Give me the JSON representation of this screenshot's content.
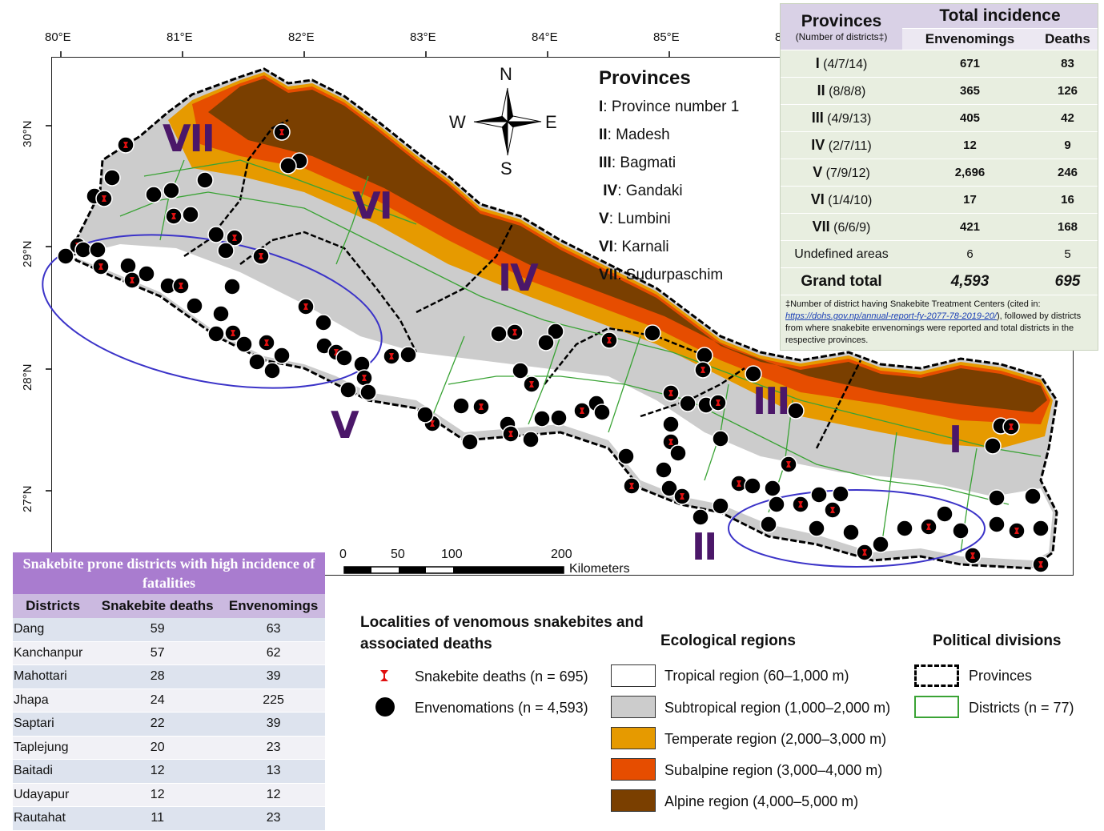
{
  "axes": {
    "longitudes": [
      "80°E",
      "81°E",
      "82°E",
      "83°E",
      "84°E",
      "85°E",
      "8"
    ],
    "latitudes": [
      "30°N",
      "29°N",
      "28°N",
      "27°N"
    ]
  },
  "compass": {
    "n": "N",
    "s": "S",
    "e": "E",
    "w": "W"
  },
  "provinces_legend": {
    "title": "Provinces",
    "items": [
      {
        "num": "I",
        "name": ": Province number 1"
      },
      {
        "num": "II",
        "name": ": Madesh"
      },
      {
        "num": "III",
        "name": ": Bagmati"
      },
      {
        "num": "IV",
        "name": ": Gandaki"
      },
      {
        "num": "V",
        "name": ": Lumbini"
      },
      {
        "num": "VI",
        "name": ": Karnali"
      },
      {
        "num": "VII",
        "name": ": Sudurpaschim"
      }
    ]
  },
  "map_labels": [
    "VII",
    "VI",
    "IV",
    "V",
    "III",
    "II",
    "I"
  ],
  "incidence_table": {
    "col_provinces": "Provinces",
    "col_provinces_sub": "(Number of districts‡)",
    "col_total": "Total incidence",
    "col_env": "Envenomings",
    "col_deaths": "Deaths",
    "rows": [
      {
        "p": "I",
        "d": "(4/7/14)",
        "e": "671",
        "k": "83"
      },
      {
        "p": "II",
        "d": "(8/8/8)",
        "e": "365",
        "k": "126"
      },
      {
        "p": "III",
        "d": "(4/9/13)",
        "e": "405",
        "k": "42"
      },
      {
        "p": "IV",
        "d": "(2/7/11)",
        "e": "12",
        "k": "9"
      },
      {
        "p": "V",
        "d": "(7/9/12)",
        "e": "2,696",
        "k": "246"
      },
      {
        "p": "VI",
        "d": "(1/4/10)",
        "e": "17",
        "k": "16"
      },
      {
        "p": "VII",
        "d": "(6/6/9)",
        "e": "421",
        "k": "168"
      }
    ],
    "undefined_label": "Undefined areas",
    "undefined_e": "6",
    "undefined_k": "5",
    "grand_label": "Grand total",
    "grand_e": "4,593",
    "grand_k": "695",
    "note_a": "‡Number of district having Snakebite Treatment Centers (cited in: ",
    "note_link": "https://dohs.gov.np/annual-report-fy-2077-78-2019-20/",
    "note_b": "), followed by districts from where snakebite envenomings were reported and total districts in the respective provinces."
  },
  "prone_table": {
    "caption": "Snakebite prone districts with high incidence of fatalities",
    "headers": [
      "Districts",
      "Snakebite deaths",
      "Envenomings"
    ],
    "rows": [
      [
        "Dang",
        "59",
        "63"
      ],
      [
        "Kanchanpur",
        "57",
        "62"
      ],
      [
        "Mahottari",
        "28",
        "39"
      ],
      [
        "Jhapa",
        "24",
        "225"
      ],
      [
        "Saptari",
        "22",
        "39"
      ],
      [
        "Taplejung",
        "20",
        "23"
      ],
      [
        "Baitadi",
        "12",
        "13"
      ],
      [
        "Udayapur",
        "12",
        "12"
      ],
      [
        "Rautahat",
        "11",
        "23"
      ]
    ]
  },
  "scale_bar": {
    "ticks": [
      "0",
      "50",
      "100",
      "200"
    ],
    "unit": "Kilometers"
  },
  "legend": {
    "localities_title": "Localities of venomous snakebites and associated deaths",
    "deaths_label": "Snakebite deaths (n = 695)",
    "envenom_label": "Envenomations (n = 4,593)",
    "eco_title": "Ecological regions",
    "eco_items": [
      {
        "label": "Tropical region (60–1,000 m)",
        "color": "#ffffff"
      },
      {
        "label": "Subtropical region (1,000–2,000 m)",
        "color": "#cccccc"
      },
      {
        "label": "Temperate region (2,000–3,000 m)",
        "color": "#e69a00"
      },
      {
        "label": "Subalpine region (3,000–4,000 m)",
        "color": "#e64d00"
      },
      {
        "label": "Alpine region (4,000–5,000 m)",
        "color": "#7a3f00"
      }
    ],
    "pol_title": "Political divisions",
    "pol_provinces": "Provinces",
    "pol_districts": "Districts (n = 77)"
  }
}
